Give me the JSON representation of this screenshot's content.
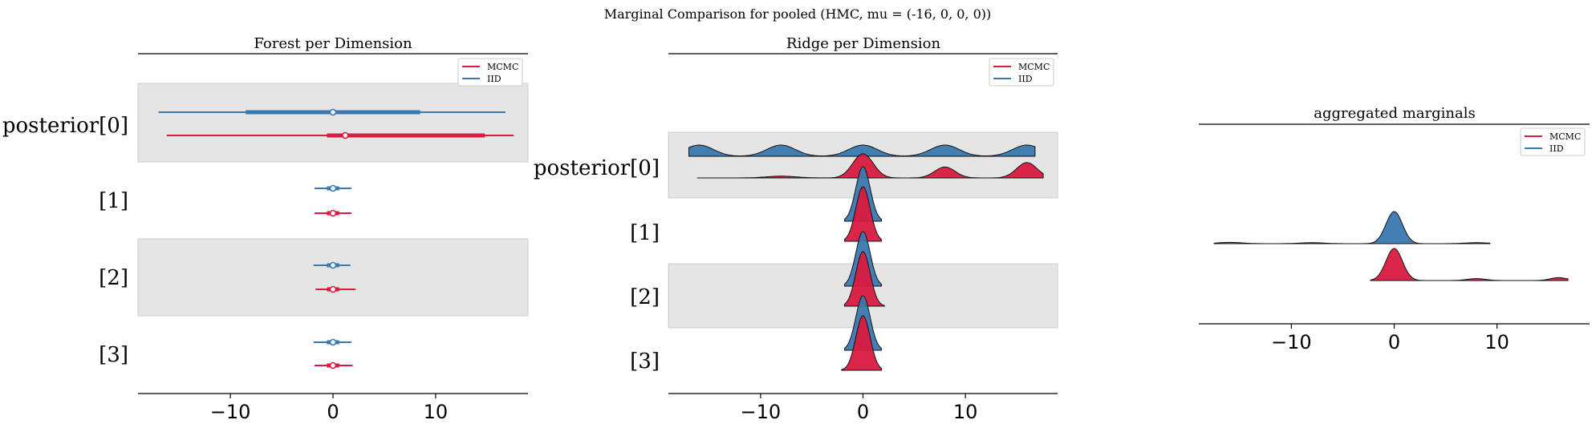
{
  "figure": {
    "suptitle": "Marginal Comparison for pooled (HMC, mu = (-16, 0, 0, 0))"
  },
  "colors": {
    "mcmc": "#d81b3f",
    "iid": "#3a78b0",
    "shade": "#e5e5e5"
  },
  "chart_data": [
    {
      "type": "forest",
      "title": "Forest per Dimension",
      "row_labels": [
        "posterior[0]",
        "[1]",
        "[2]",
        "[3]"
      ],
      "xlim": [
        -19,
        19
      ],
      "xticks": [
        -10,
        0,
        10
      ],
      "xtick_labels": [
        "−10",
        "0",
        "10"
      ],
      "legend": {
        "position": "top-right",
        "entries": [
          "MCMC",
          "IID"
        ]
      },
      "series": [
        {
          "name": "IID",
          "rows": [
            {
              "center": 0,
              "iqr": [
                -8.5,
                8.5
              ],
              "hdi": [
                -17,
                16.8
              ]
            },
            {
              "center": 0,
              "iqr": [
                -0.6,
                0.6
              ],
              "hdi": [
                -1.8,
                1.8
              ]
            },
            {
              "center": 0,
              "iqr": [
                -0.6,
                0.6
              ],
              "hdi": [
                -1.9,
                1.7
              ]
            },
            {
              "center": 0,
              "iqr": [
                -0.6,
                0.6
              ],
              "hdi": [
                -1.9,
                1.8
              ]
            }
          ]
        },
        {
          "name": "MCMC",
          "rows": [
            {
              "center": 1.2,
              "iqr": [
                -0.6,
                14.8
              ],
              "hdi": [
                -16.2,
                17.6
              ]
            },
            {
              "center": 0,
              "iqr": [
                -0.6,
                0.6
              ],
              "hdi": [
                -1.8,
                1.8
              ]
            },
            {
              "center": 0,
              "iqr": [
                -0.6,
                0.6
              ],
              "hdi": [
                -1.7,
                2.2
              ]
            },
            {
              "center": 0,
              "iqr": [
                -0.6,
                0.6
              ],
              "hdi": [
                -1.8,
                1.9
              ]
            }
          ]
        }
      ]
    },
    {
      "type": "ridge",
      "title": "Ridge per Dimension",
      "row_labels": [
        "posterior[0]",
        "[1]",
        "[2]",
        "[3]"
      ],
      "xlim": [
        -19,
        19
      ],
      "xticks": [
        -10,
        0,
        10
      ],
      "xtick_labels": [
        "−10",
        "0",
        "10"
      ],
      "legend": {
        "position": "top-right",
        "entries": [
          "MCMC",
          "IID"
        ]
      },
      "series": [
        {
          "name": "IID",
          "rows": [
            {
              "range": [
                -17,
                16.8
              ],
              "modes": [
                [
                  -16,
                  0.3,
                  1.4
                ],
                [
                  -8,
                  0.3,
                  1.4
                ],
                [
                  0,
                  0.3,
                  1.4
                ],
                [
                  8,
                  0.3,
                  1.4
                ],
                [
                  16,
                  0.3,
                  1.4
                ]
              ]
            },
            {
              "range": [
                -1.8,
                1.8
              ],
              "modes": [
                [
                  0,
                  1.0,
                  0.7
                ]
              ]
            },
            {
              "range": [
                -1.8,
                1.8
              ],
              "modes": [
                [
                  0,
                  1.0,
                  0.7
                ]
              ]
            },
            {
              "range": [
                -1.8,
                1.8
              ],
              "modes": [
                [
                  0,
                  1.0,
                  0.7
                ]
              ]
            }
          ]
        },
        {
          "name": "MCMC",
          "rows": [
            {
              "range": [
                -16.2,
                17.6
              ],
              "modes": [
                [
                  0,
                  0.55,
                  1.0
                ],
                [
                  8,
                  0.25,
                  1.0
                ],
                [
                  16,
                  0.35,
                  1.0
                ],
                [
                  -8,
                  0.04,
                  1.5
                ]
              ]
            },
            {
              "range": [
                -1.8,
                1.8
              ],
              "modes": [
                [
                  0,
                  1.0,
                  0.7
                ]
              ]
            },
            {
              "range": [
                -1.8,
                2.1
              ],
              "modes": [
                [
                  0,
                  1.0,
                  0.7
                ]
              ]
            },
            {
              "range": [
                -2.1,
                1.8
              ],
              "modes": [
                [
                  0,
                  1.0,
                  0.7
                ]
              ]
            }
          ]
        }
      ]
    },
    {
      "type": "ridge",
      "title": "aggregated marginals",
      "xlim": [
        -19,
        19
      ],
      "xticks": [
        -10,
        0,
        10
      ],
      "xtick_labels": [
        "−10",
        "0",
        "10"
      ],
      "legend": {
        "position": "top-right",
        "entries": [
          "MCMC",
          "IID"
        ]
      },
      "series": [
        {
          "name": "IID",
          "range": [
            -17.5,
            9.3
          ],
          "modes": [
            [
              0,
              1.0,
              0.8
            ],
            [
              -16,
              0.04,
              1.2
            ],
            [
              -8,
              0.03,
              1.2
            ],
            [
              8,
              0.03,
              1.2
            ]
          ]
        },
        {
          "name": "MCMC",
          "range": [
            -2.3,
            16.9
          ],
          "modes": [
            [
              0,
              1.0,
              0.8
            ],
            [
              8,
              0.06,
              0.9
            ],
            [
              16,
              0.09,
              0.8
            ]
          ]
        }
      ]
    }
  ]
}
